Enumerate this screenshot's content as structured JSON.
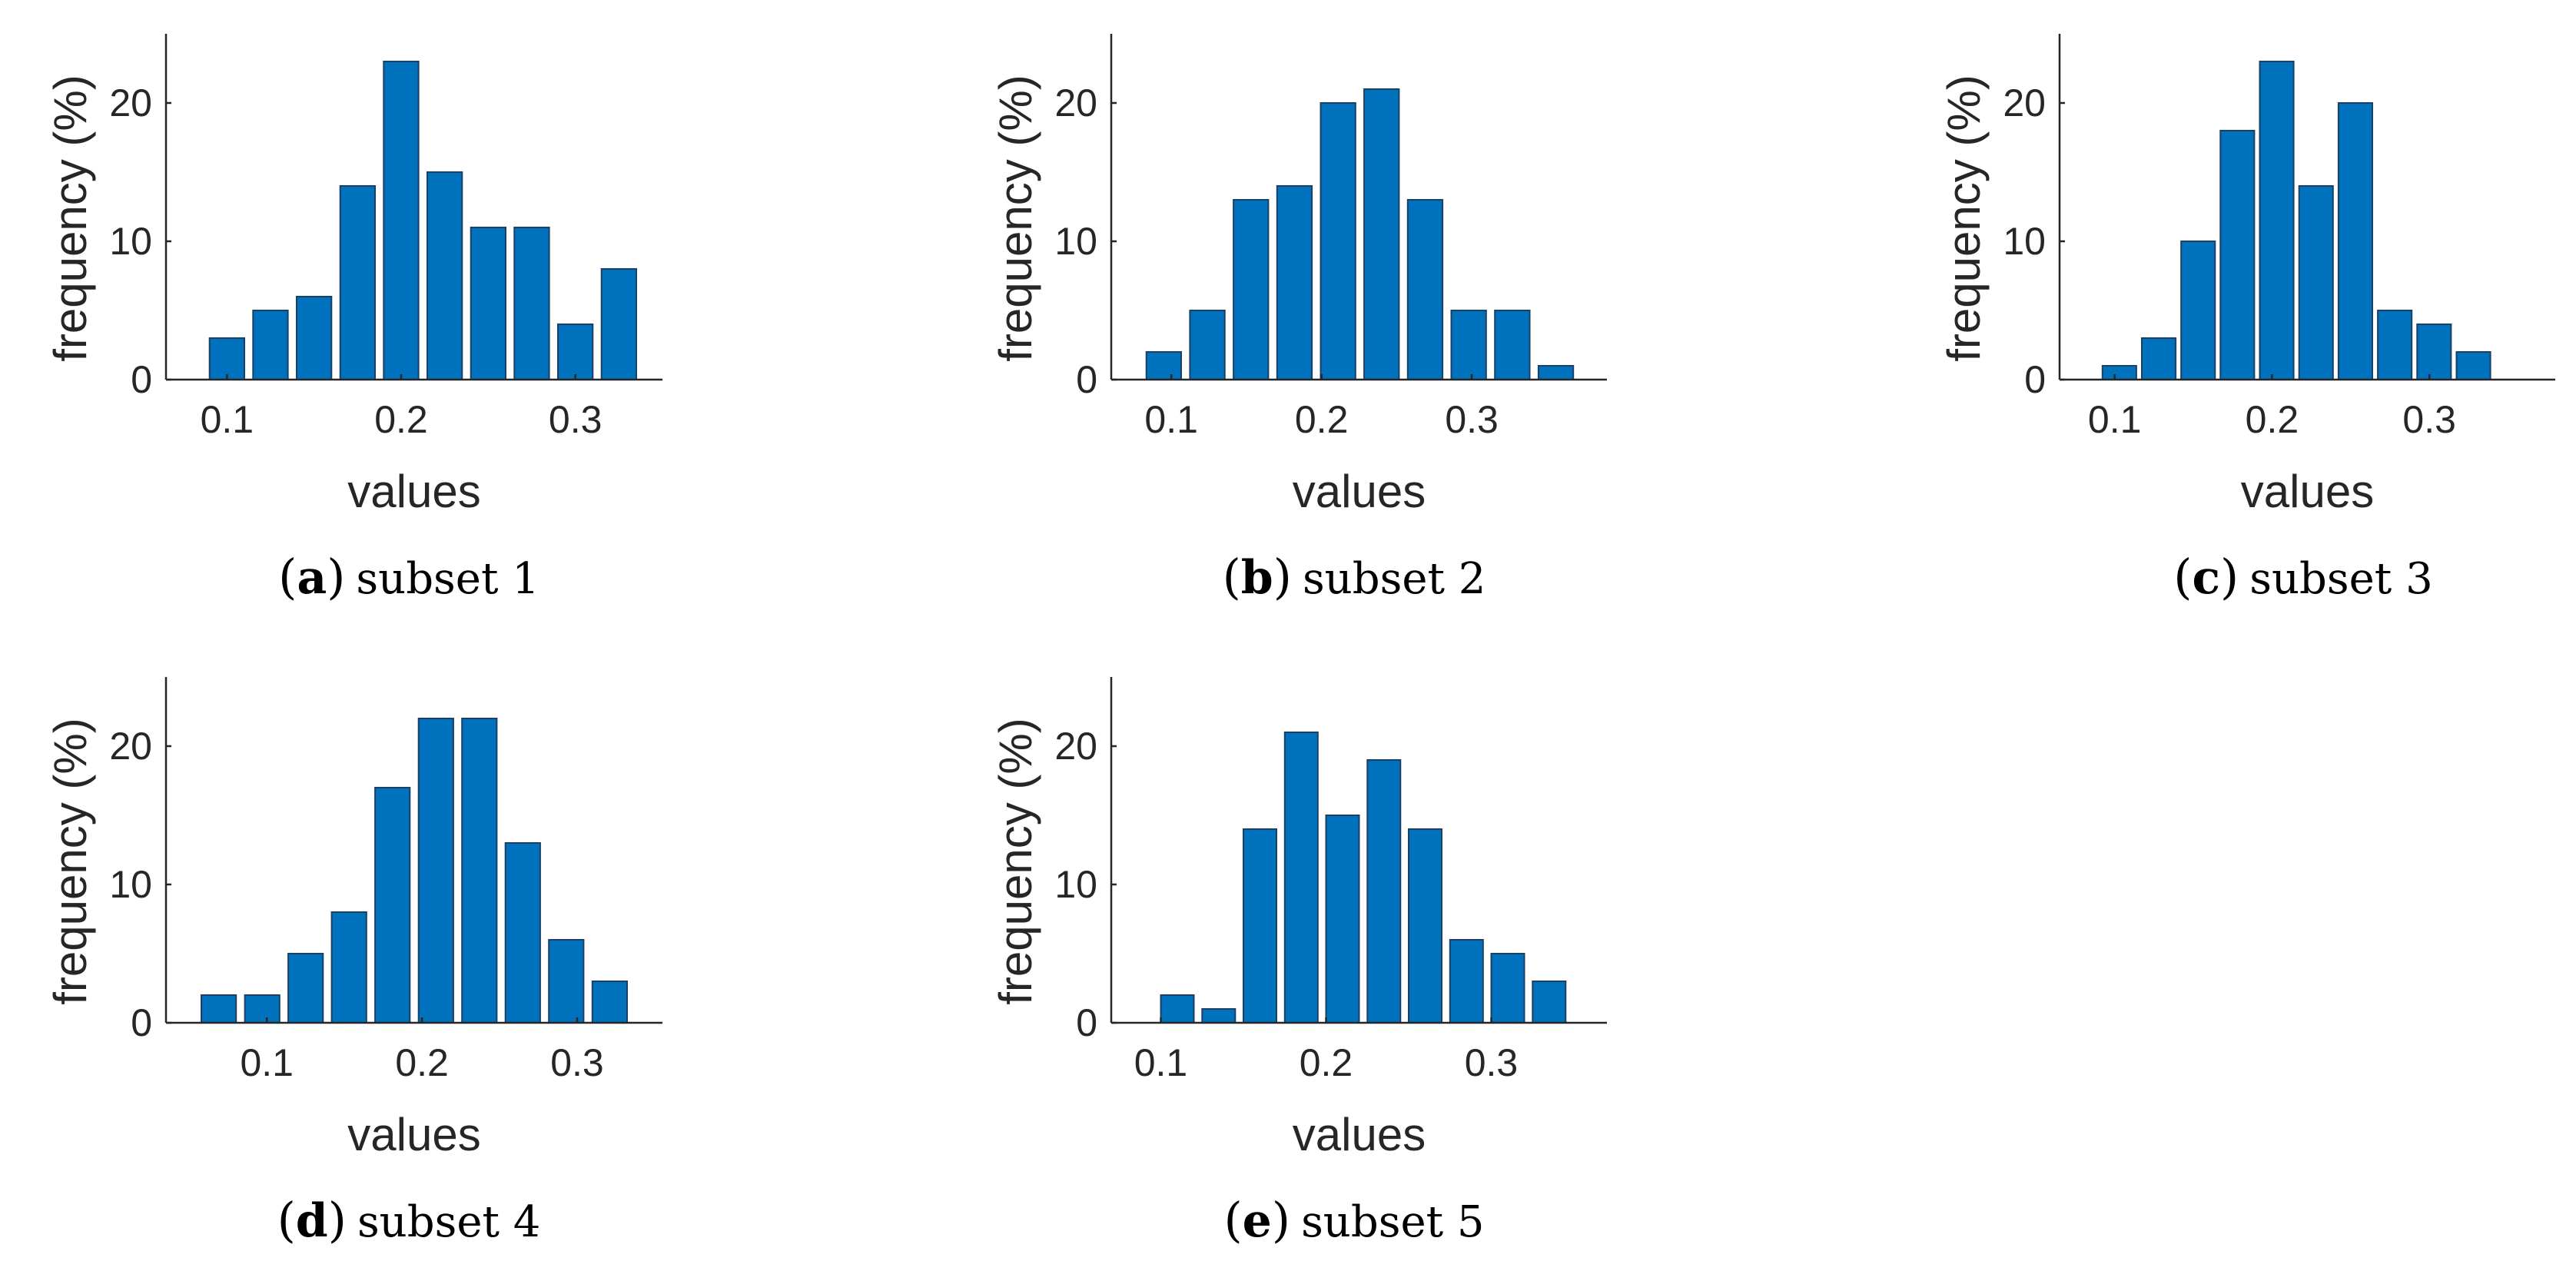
{
  "colors": {
    "bar": "#0072BD",
    "axis": "#262626",
    "text": "#262626"
  },
  "chart_data": [
    {
      "type": "bar",
      "caption_letter": "a",
      "caption_text": "subset 1",
      "xlabel": "values",
      "ylabel": "frequency (%)",
      "x": [
        0.1,
        0.125,
        0.15,
        0.175,
        0.2,
        0.225,
        0.25,
        0.275,
        0.3,
        0.325
      ],
      "values": [
        3,
        5,
        6,
        14,
        23,
        15,
        11,
        11,
        4,
        8
      ],
      "bin_width": 0.025,
      "xlim": [
        0.065,
        0.35
      ],
      "ylim": [
        0,
        25
      ],
      "xticks": [
        0.1,
        0.2,
        0.3
      ],
      "yticks": [
        0,
        10,
        20
      ]
    },
    {
      "type": "bar",
      "caption_letter": "b",
      "caption_text": "subset 2",
      "xlabel": "values",
      "ylabel": "frequency (%)",
      "x": [
        0.095,
        0.124,
        0.153,
        0.182,
        0.211,
        0.24,
        0.269,
        0.298,
        0.327,
        0.356
      ],
      "values": [
        2,
        5,
        13,
        14,
        20,
        21,
        13,
        5,
        5,
        1
      ],
      "bin_width": 0.029,
      "xlim": [
        0.06,
        0.39
      ],
      "ylim": [
        0,
        25
      ],
      "xticks": [
        0.1,
        0.2,
        0.3
      ],
      "yticks": [
        0,
        10,
        20
      ]
    },
    {
      "type": "bar",
      "caption_letter": "c",
      "caption_text": "subset 3",
      "xlabel": "values",
      "ylabel": "frequency (%)",
      "x": [
        0.103,
        0.128,
        0.153,
        0.178,
        0.203,
        0.228,
        0.253,
        0.278,
        0.303,
        0.328,
        0.353
      ],
      "values": [
        1,
        3,
        10,
        18,
        23,
        14,
        20,
        5,
        4,
        2,
        0
      ],
      "bin_width": 0.0269,
      "xlim": [
        0.065,
        0.38
      ],
      "ylim": [
        0,
        25
      ],
      "xticks": [
        0.1,
        0.2,
        0.3
      ],
      "yticks": [
        0,
        10,
        20
      ]
    },
    {
      "type": "bar",
      "caption_letter": "d",
      "caption_text": "subset 4",
      "xlabel": "values",
      "ylabel": "frequency (%)",
      "x": [
        0.069,
        0.097,
        0.125,
        0.153,
        0.181,
        0.209,
        0.237,
        0.265,
        0.293,
        0.321
      ],
      "values": [
        2,
        2,
        5,
        8,
        17,
        22,
        22,
        13,
        6,
        3
      ],
      "bin_width": 0.028,
      "xlim": [
        0.035,
        0.355
      ],
      "ylim": [
        0,
        25
      ],
      "xticks": [
        0.1,
        0.2,
        0.3
      ],
      "yticks": [
        0,
        10,
        20
      ]
    },
    {
      "type": "bar",
      "caption_letter": "e",
      "caption_text": "subset 5",
      "xlabel": "values",
      "ylabel": "frequency (%)",
      "x": [
        0.11,
        0.135,
        0.16,
        0.185,
        0.21,
        0.235,
        0.26,
        0.285,
        0.31,
        0.335
      ],
      "values": [
        2,
        1,
        14,
        21,
        15,
        19,
        14,
        6,
        5,
        3
      ],
      "bin_width": 0.025,
      "xlim": [
        0.07,
        0.37
      ],
      "ylim": [
        0,
        25
      ],
      "xticks": [
        0.1,
        0.2,
        0.3
      ],
      "yticks": [
        0,
        10,
        20
      ]
    }
  ]
}
